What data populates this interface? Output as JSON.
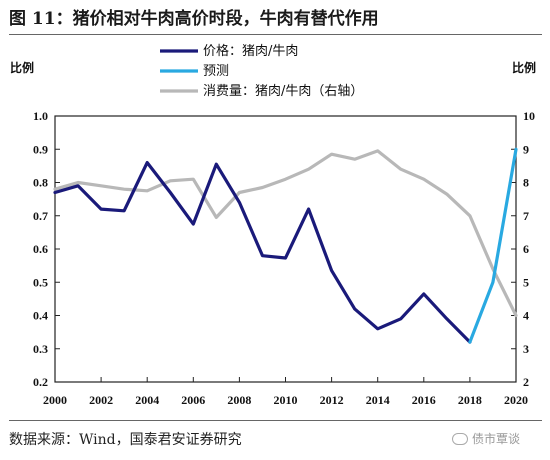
{
  "figure": {
    "title": "图 11：猪价相对牛肉高价时段，牛肉有替代作用",
    "source": "数据来源：Wind，国泰君安证券研究",
    "watermark": "债市覃谈"
  },
  "colors": {
    "price": "#1a1a7a",
    "forecast": "#29a9e1",
    "consumption": "#b8b8b8"
  },
  "chart_data": {
    "type": "line",
    "title": "",
    "ylabel_left": "比例",
    "ylabel_right": "比例",
    "ylim_left": [
      0.2,
      1.0
    ],
    "ylim_right": [
      2,
      10
    ],
    "xlim": [
      2000,
      2020
    ],
    "x_ticks": [
      "2000",
      "2002",
      "2004",
      "2006",
      "2008",
      "2010",
      "2012",
      "2014",
      "2016",
      "2018",
      "2020"
    ],
    "y_ticks_left": [
      "0.2",
      "0.3",
      "0.4",
      "0.5",
      "0.6",
      "0.7",
      "0.8",
      "0.9",
      "1.0"
    ],
    "y_ticks_right": [
      "2",
      "3",
      "4",
      "5",
      "6",
      "7",
      "8",
      "9",
      "10"
    ],
    "grid": false,
    "legend_position": "top-left",
    "series": [
      {
        "name": "价格：猪肉/牛肉",
        "axis": "left",
        "x": [
          2000,
          2001,
          2002,
          2003,
          2004,
          2005,
          2006,
          2007,
          2008,
          2009,
          2010,
          2011,
          2012,
          2013,
          2014,
          2015,
          2016,
          2017,
          2018
        ],
        "y": [
          0.77,
          0.79,
          0.72,
          0.715,
          0.86,
          0.77,
          0.675,
          0.855,
          0.74,
          0.58,
          0.573,
          0.72,
          0.535,
          0.42,
          0.36,
          0.39,
          0.465,
          0.39,
          0.32
        ]
      },
      {
        "name": "预测",
        "axis": "left",
        "x": [
          2018,
          2019,
          2020
        ],
        "y": [
          0.32,
          0.5,
          0.9
        ]
      },
      {
        "name": "消费量：猪肉/牛肉（右轴）",
        "axis": "right",
        "x": [
          2000,
          2001,
          2002,
          2003,
          2004,
          2005,
          2006,
          2007,
          2008,
          2009,
          2010,
          2011,
          2012,
          2013,
          2014,
          2015,
          2016,
          2017,
          2018,
          2019,
          2020
        ],
        "y": [
          7.8,
          8.0,
          7.9,
          7.8,
          7.75,
          8.05,
          8.1,
          6.95,
          7.7,
          7.85,
          8.1,
          8.4,
          8.85,
          8.7,
          8.95,
          8.4,
          8.1,
          7.65,
          7.0,
          5.4,
          4.0
        ]
      }
    ]
  }
}
